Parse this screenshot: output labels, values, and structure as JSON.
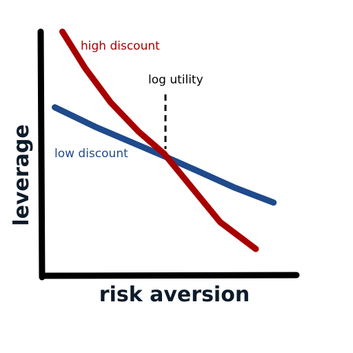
{
  "chart_data": {
    "type": "line",
    "title": "",
    "xlabel": "risk aversion",
    "ylabel": "leverage",
    "xlim": [
      0,
      1
    ],
    "ylim": [
      0,
      1
    ],
    "grid": false,
    "legend": "inline labels",
    "series": [
      {
        "name": "high discount",
        "color": "#a80000",
        "x": [
          0.08,
          0.17,
          0.27,
          0.38,
          0.48,
          0.59,
          0.7,
          0.84
        ],
        "y": [
          1.0,
          0.85,
          0.71,
          0.59,
          0.5,
          0.36,
          0.22,
          0.11
        ]
      },
      {
        "name": "low discount",
        "color": "#1f4a8c",
        "x": [
          0.05,
          0.21,
          0.39,
          0.48,
          0.61,
          0.76,
          0.91
        ],
        "y": [
          0.69,
          0.61,
          0.53,
          0.49,
          0.43,
          0.36,
          0.3
        ]
      }
    ],
    "annotations": [
      {
        "text": "log utility",
        "x": 0.48,
        "style": "dashed-vertical",
        "color": "#000000"
      }
    ]
  }
}
